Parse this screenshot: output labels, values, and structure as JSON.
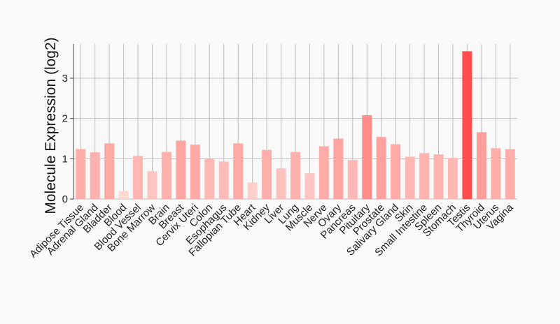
{
  "chart_data": {
    "type": "bar",
    "title": "",
    "xlabel": "",
    "ylabel": "Molecule Expression (log2)",
    "ylim": [
      0,
      3.85
    ],
    "yticks": [
      0,
      1,
      2,
      3
    ],
    "grid": true,
    "legend": "none",
    "categories": [
      "Adipose Tissue",
      "Adrenal Gland",
      "Bladder",
      "Blood",
      "Blood Vessel",
      "Bone Marrow",
      "Brain",
      "Breast",
      "Cervix Uteri",
      "Colon",
      "Esophagus",
      "Fallopian Tube",
      "Heart",
      "Kidney",
      "Liver",
      "Lung",
      "Muscle",
      "Nerve",
      "Ovary",
      "Pancreas",
      "Pituitary",
      "Prostate",
      "Salivary Gland",
      "Skin",
      "Small Intestine",
      "Spleen",
      "Stomach",
      "Testis",
      "Thyroid",
      "Uterus",
      "Vagina"
    ],
    "values": [
      1.24,
      1.16,
      1.38,
      0.2,
      1.07,
      0.69,
      1.17,
      1.45,
      1.35,
      0.99,
      0.93,
      1.38,
      0.41,
      1.22,
      0.76,
      1.17,
      0.64,
      1.31,
      1.5,
      0.97,
      2.08,
      1.54,
      1.36,
      1.05,
      1.14,
      1.11,
      1.02,
      3.67,
      1.66,
      1.26,
      1.24
    ]
  }
}
